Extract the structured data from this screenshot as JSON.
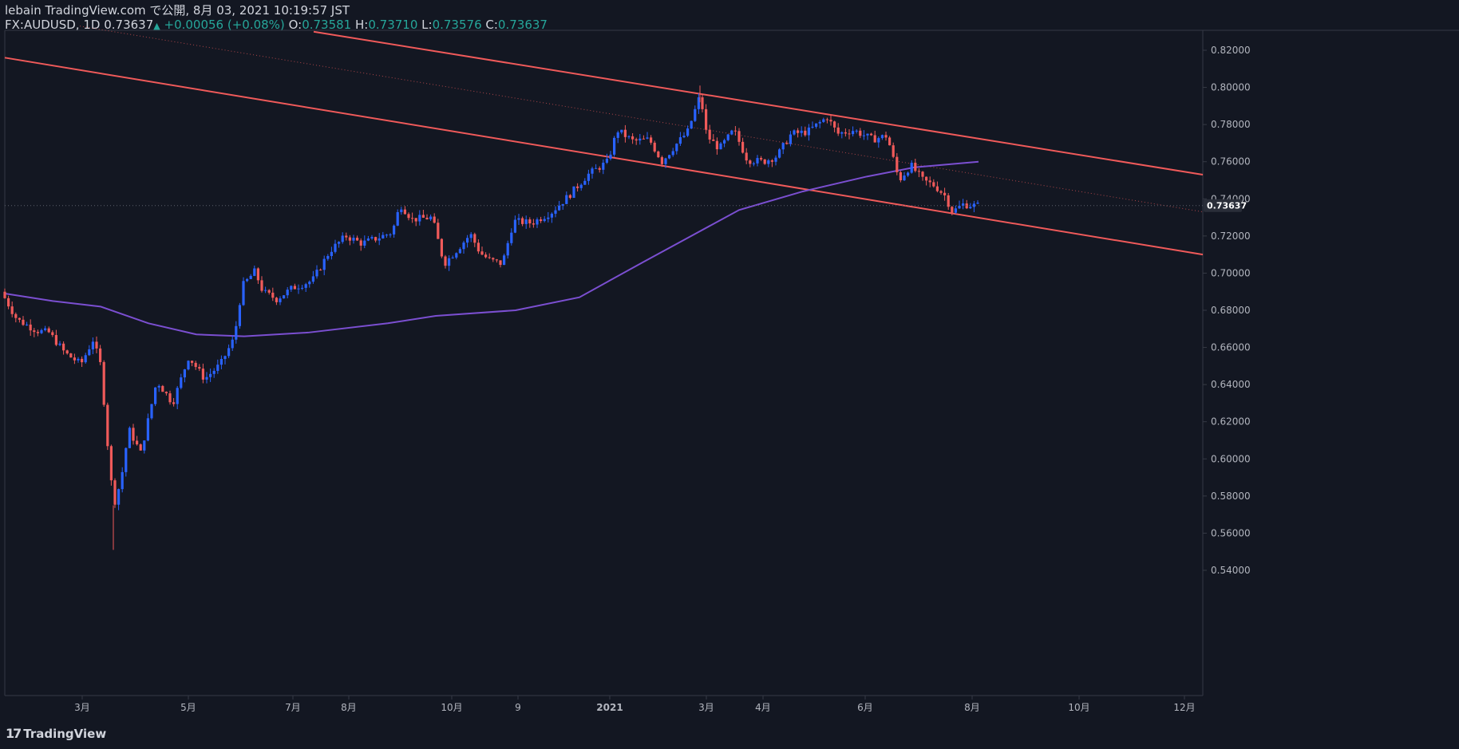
{
  "header": {
    "publish_line": "lebain TradingView.com で公開, 8月 03, 2021 10:19:57 JST",
    "symbol": "FX:AUDUSD, 1D",
    "last": "0.73637",
    "change": "+0.00056 (+0.08%)",
    "o_label": "O:",
    "o": "0.73581",
    "h_label": "H:",
    "h": "0.73710",
    "l_label": "L:",
    "l": "0.73576",
    "c_label": "C:",
    "c": "0.73637"
  },
  "footer": {
    "brand": "TradingView",
    "logo_icon": "tradingview-logo-icon"
  },
  "colors": {
    "background": "#131722",
    "up": "#2962ff",
    "down": "#f05a5a",
    "channel": "#f05a5a",
    "ma": "#7b4fd1",
    "text": "#d1d4dc",
    "axis_text": "#b2b5be"
  },
  "chart_data": {
    "type": "candlestick",
    "symbol": "FX:AUDUSD",
    "interval": "1D",
    "y_axis": {
      "ticks": [
        "0.82000",
        "0.80000",
        "0.78000",
        "0.76000",
        "0.74000",
        "0.72000",
        "0.70000",
        "0.68000",
        "0.66000",
        "0.64000",
        "0.62000",
        "0.60000",
        "0.58000",
        "0.56000",
        "0.54000"
      ],
      "range": [
        0.532,
        0.83
      ],
      "last_price_label": "0.73637"
    },
    "x_axis": {
      "ticks": [
        "3月",
        "5月",
        "7月",
        "8月",
        "10月",
        "9",
        "2021",
        "3月",
        "4月",
        "6月",
        "8月",
        "10月",
        "12月"
      ]
    },
    "price_path_points": [
      {
        "t": 0,
        "p": 0.69
      },
      {
        "t": 20,
        "p": 0.675
      },
      {
        "t": 45,
        "p": 0.669
      },
      {
        "t": 60,
        "p": 0.668
      },
      {
        "t": 80,
        "p": 0.657
      },
      {
        "t": 100,
        "p": 0.651
      },
      {
        "t": 115,
        "p": 0.664
      },
      {
        "t": 125,
        "p": 0.65
      },
      {
        "t": 135,
        "p": 0.6
      },
      {
        "t": 141,
        "p": 0.575
      },
      {
        "t": 150,
        "p": 0.588
      },
      {
        "t": 160,
        "p": 0.616
      },
      {
        "t": 175,
        "p": 0.603
      },
      {
        "t": 195,
        "p": 0.642
      },
      {
        "t": 215,
        "p": 0.63
      },
      {
        "t": 235,
        "p": 0.655
      },
      {
        "t": 255,
        "p": 0.643
      },
      {
        "t": 275,
        "p": 0.651
      },
      {
        "t": 292,
        "p": 0.665
      },
      {
        "t": 302,
        "p": 0.693
      },
      {
        "t": 318,
        "p": 0.701
      },
      {
        "t": 328,
        "p": 0.69
      },
      {
        "t": 345,
        "p": 0.686
      },
      {
        "t": 365,
        "p": 0.692
      },
      {
        "t": 390,
        "p": 0.696
      },
      {
        "t": 412,
        "p": 0.712
      },
      {
        "t": 432,
        "p": 0.72
      },
      {
        "t": 452,
        "p": 0.716
      },
      {
        "t": 472,
        "p": 0.719
      },
      {
        "t": 490,
        "p": 0.722
      },
      {
        "t": 500,
        "p": 0.737
      },
      {
        "t": 515,
        "p": 0.729
      },
      {
        "t": 540,
        "p": 0.73
      },
      {
        "t": 555,
        "p": 0.705
      },
      {
        "t": 570,
        "p": 0.712
      },
      {
        "t": 588,
        "p": 0.721
      },
      {
        "t": 600,
        "p": 0.711
      },
      {
        "t": 612,
        "p": 0.707
      },
      {
        "t": 628,
        "p": 0.705
      },
      {
        "t": 642,
        "p": 0.728
      },
      {
        "t": 665,
        "p": 0.727
      },
      {
        "t": 690,
        "p": 0.733
      },
      {
        "t": 712,
        "p": 0.742
      },
      {
        "t": 735,
        "p": 0.753
      },
      {
        "t": 760,
        "p": 0.76
      },
      {
        "t": 772,
        "p": 0.777
      },
      {
        "t": 792,
        "p": 0.771
      },
      {
        "t": 812,
        "p": 0.772
      },
      {
        "t": 828,
        "p": 0.76
      },
      {
        "t": 845,
        "p": 0.769
      },
      {
        "t": 860,
        "p": 0.776
      },
      {
        "t": 876,
        "p": 0.796
      },
      {
        "t": 884,
        "p": 0.774
      },
      {
        "t": 900,
        "p": 0.767
      },
      {
        "t": 918,
        "p": 0.777
      },
      {
        "t": 935,
        "p": 0.761
      },
      {
        "t": 955,
        "p": 0.76
      },
      {
        "t": 972,
        "p": 0.763
      },
      {
        "t": 990,
        "p": 0.775
      },
      {
        "t": 1010,
        "p": 0.776
      },
      {
        "t": 1035,
        "p": 0.784
      },
      {
        "t": 1048,
        "p": 0.775
      },
      {
        "t": 1068,
        "p": 0.777
      },
      {
        "t": 1092,
        "p": 0.772
      },
      {
        "t": 1110,
        "p": 0.774
      },
      {
        "t": 1125,
        "p": 0.75
      },
      {
        "t": 1140,
        "p": 0.758
      },
      {
        "t": 1155,
        "p": 0.75
      },
      {
        "t": 1170,
        "p": 0.747
      },
      {
        "t": 1182,
        "p": 0.742
      },
      {
        "t": 1192,
        "p": 0.733
      },
      {
        "t": 1205,
        "p": 0.737
      },
      {
        "t": 1220,
        "p": 0.7364
      }
    ],
    "moving_average_points": [
      {
        "t": 0,
        "p": 0.689
      },
      {
        "t": 60,
        "p": 0.685
      },
      {
        "t": 120,
        "p": 0.682
      },
      {
        "t": 180,
        "p": 0.673
      },
      {
        "t": 240,
        "p": 0.667
      },
      {
        "t": 300,
        "p": 0.666
      },
      {
        "t": 380,
        "p": 0.668
      },
      {
        "t": 480,
        "p": 0.673
      },
      {
        "t": 540,
        "p": 0.677
      },
      {
        "t": 640,
        "p": 0.68
      },
      {
        "t": 720,
        "p": 0.687
      },
      {
        "t": 800,
        "p": 0.706
      },
      {
        "t": 860,
        "p": 0.72
      },
      {
        "t": 920,
        "p": 0.734
      },
      {
        "t": 1000,
        "p": 0.744
      },
      {
        "t": 1080,
        "p": 0.752
      },
      {
        "t": 1140,
        "p": 0.757
      },
      {
        "t": 1220,
        "p": 0.76
      }
    ],
    "channel": {
      "upper": [
        {
          "t": 393,
          "p": 0.83
        },
        {
          "t": 1507,
          "p": 0.753
        }
      ],
      "lower": [
        {
          "t": 6,
          "p": 0.816
        },
        {
          "t": 1507,
          "p": 0.71
        }
      ],
      "mid_dotted": [
        {
          "t": 100,
          "p": 0.833
        },
        {
          "t": 1507,
          "p": 0.733
        }
      ]
    },
    "last_price": 0.73637,
    "grid": false
  }
}
